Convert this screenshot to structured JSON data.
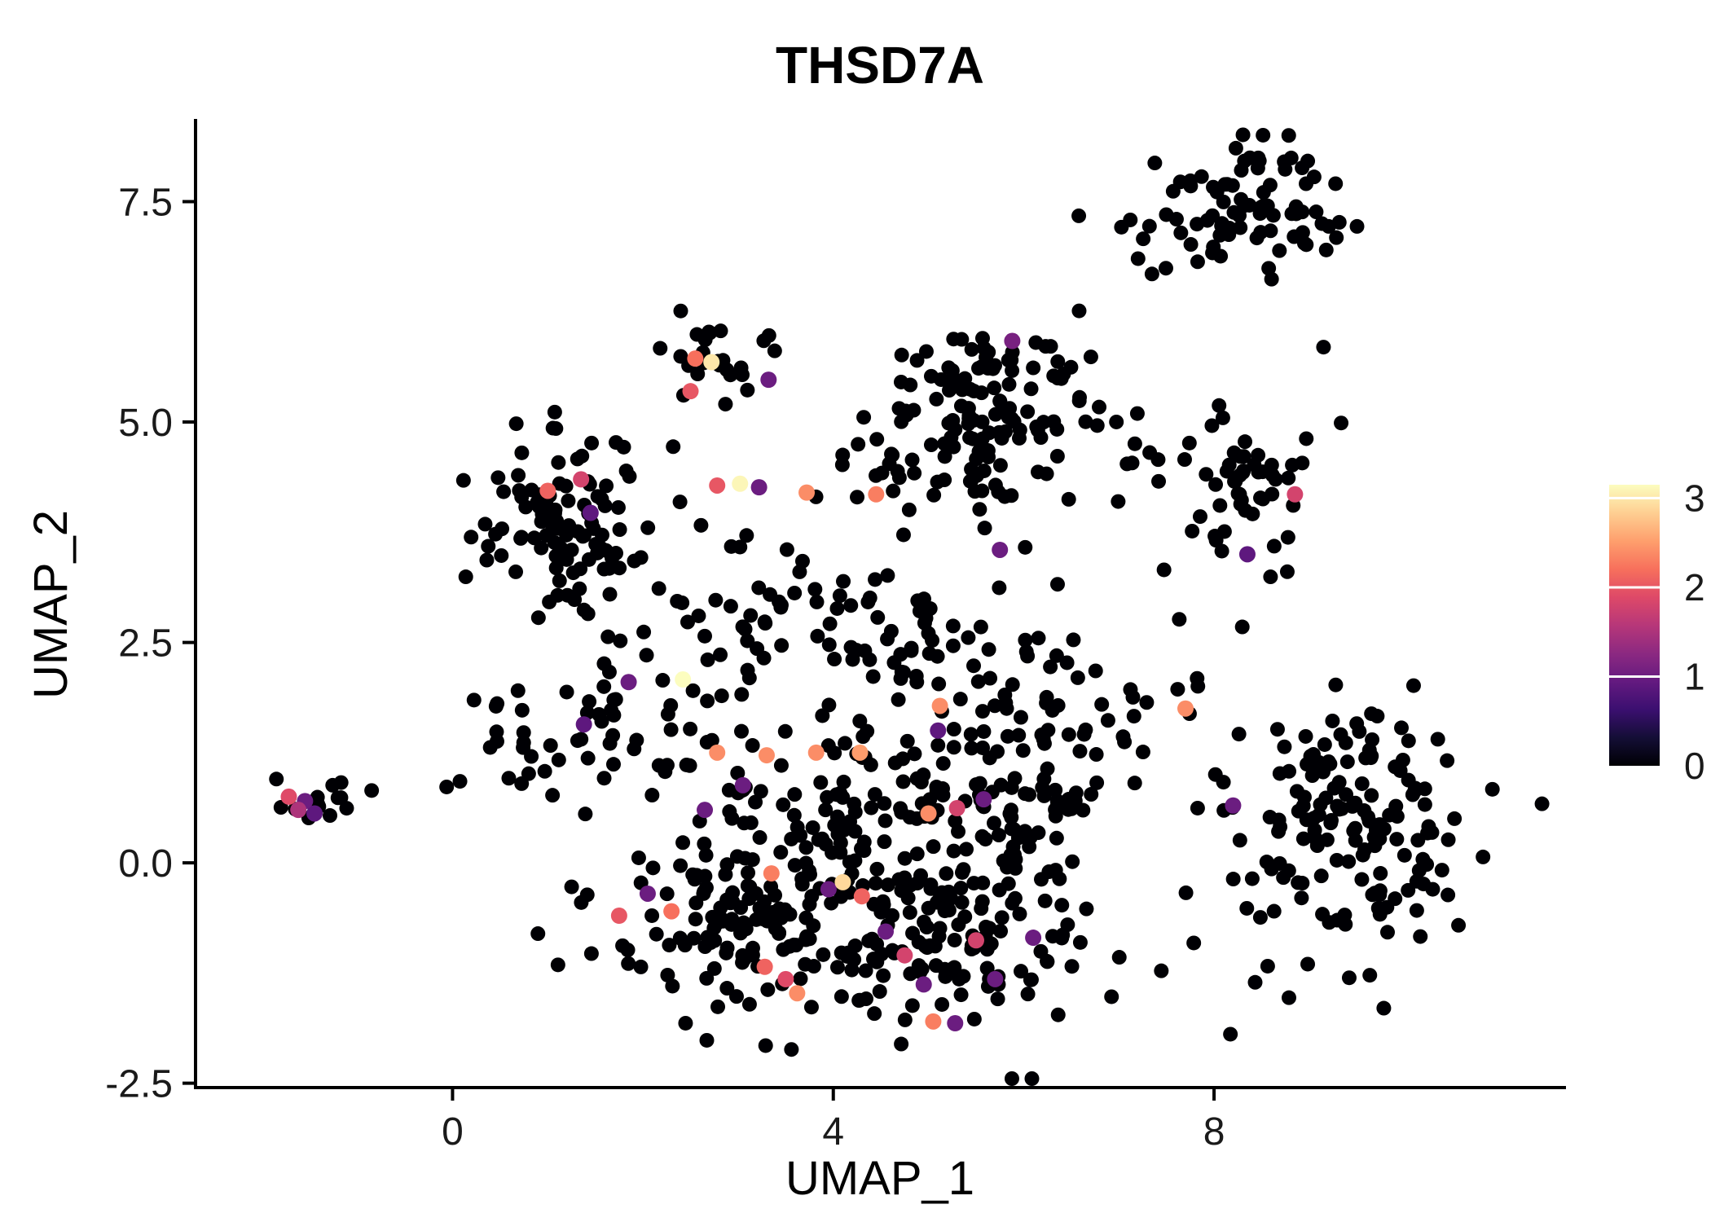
{
  "page": {
    "background": "#FFFFFF"
  },
  "chart_data": {
    "type": "scatter",
    "title": "THSD7A",
    "xlabel": "UMAP_1",
    "ylabel": "UMAP_2",
    "xlim": [
      -2.7,
      11.68
    ],
    "ylim": [
      -2.55,
      8.42
    ],
    "grid": false,
    "xticks": [
      {
        "v": 0,
        "label": "0"
      },
      {
        "v": 4,
        "label": "4"
      },
      {
        "v": 8,
        "label": "8"
      }
    ],
    "yticks": [
      {
        "v": -2.5,
        "label": "-2.5"
      },
      {
        "v": 0,
        "label": "0.0"
      },
      {
        "v": 2.5,
        "label": "2.5"
      },
      {
        "v": 5,
        "label": "5.0"
      },
      {
        "v": 7.5,
        "label": "7.5"
      }
    ],
    "legend": {
      "type": "colorbar",
      "position": "right",
      "min": 0,
      "max": 3.15,
      "ticks": [
        {
          "v": 0,
          "label": "0"
        },
        {
          "v": 1,
          "label": "1"
        },
        {
          "v": 2,
          "label": "2"
        },
        {
          "v": 3,
          "label": "3"
        }
      ]
    },
    "colormap": {
      "name": "magma",
      "stops": [
        [
          0.0,
          "#000004"
        ],
        [
          0.1,
          "#140E36"
        ],
        [
          0.2,
          "#3B0F70"
        ],
        [
          0.3,
          "#641A80"
        ],
        [
          0.4,
          "#8C2981"
        ],
        [
          0.5,
          "#B73779"
        ],
        [
          0.6,
          "#DE4968"
        ],
        [
          0.7,
          "#F7705C"
        ],
        [
          0.8,
          "#FE9F6D"
        ],
        [
          0.9,
          "#FECF92"
        ],
        [
          1.0,
          "#FCFDBF"
        ]
      ]
    },
    "point_color_zero": "#000004",
    "point_radius": 9,
    "random_seed": 12,
    "clusters": [
      {
        "name": "top-right",
        "cx": 8.35,
        "cy": 7.45,
        "sx": 0.5,
        "sy": 0.34,
        "n": 85
      },
      {
        "name": "top-right-fringe",
        "cx": 7.15,
        "cy": 7.0,
        "sx": 0.25,
        "sy": 0.3,
        "n": 5
      },
      {
        "name": "top-middle-small",
        "cx": 2.75,
        "cy": 5.75,
        "sx": 0.27,
        "sy": 0.22,
        "n": 26
      },
      {
        "name": "upper-mid",
        "cx": 5.55,
        "cy": 4.95,
        "sx": 0.5,
        "sy": 0.5,
        "n": 115
      },
      {
        "name": "upper-mid-top",
        "cx": 5.95,
        "cy": 5.7,
        "sx": 0.3,
        "sy": 0.2,
        "n": 18
      },
      {
        "name": "right-mid",
        "cx": 8.3,
        "cy": 4.3,
        "sx": 0.42,
        "sy": 0.4,
        "n": 55
      },
      {
        "name": "left",
        "cx": 1.15,
        "cy": 3.75,
        "sx": 0.42,
        "sy": 0.5,
        "n": 110
      },
      {
        "name": "far-left",
        "cx": -1.5,
        "cy": 0.72,
        "sx": 0.22,
        "sy": 0.11,
        "n": 14
      },
      {
        "name": "central-band",
        "cx": 1.8,
        "cy": 1.6,
        "sx": 0.7,
        "sy": 0.45,
        "n": 50
      },
      {
        "name": "left-notch",
        "cx": 0.55,
        "cy": 1.15,
        "sx": 0.2,
        "sy": 0.18,
        "n": 10
      },
      {
        "name": "mass-1",
        "cx": 3.1,
        "cy": -0.5,
        "sx": 0.72,
        "sy": 0.6,
        "n": 115
      },
      {
        "name": "mass-2",
        "cx": 4.6,
        "cy": -0.6,
        "sx": 0.75,
        "sy": 0.62,
        "n": 125
      },
      {
        "name": "mass-3",
        "cx": 5.8,
        "cy": -0.4,
        "sx": 0.55,
        "sy": 0.68,
        "n": 85
      },
      {
        "name": "mass-4",
        "cx": 4.6,
        "cy": 0.9,
        "sx": 0.95,
        "sy": 0.5,
        "n": 105
      },
      {
        "name": "mass-5",
        "cx": 6.3,
        "cy": 1.6,
        "sx": 0.55,
        "sy": 0.55,
        "n": 55
      },
      {
        "name": "bridge-top",
        "cx": 3.3,
        "cy": 2.9,
        "sx": 0.75,
        "sy": 0.4,
        "n": 40
      },
      {
        "name": "bridge-mid",
        "cx": 5.0,
        "cy": 2.6,
        "sx": 0.65,
        "sy": 0.45,
        "n": 45
      },
      {
        "name": "bottom-right",
        "cx": 9.35,
        "cy": 0.45,
        "sx": 0.62,
        "sy": 0.75,
        "n": 165
      },
      {
        "name": "gap-right",
        "cx": 7.5,
        "cy": 2.1,
        "sx": 0.3,
        "sy": 0.4,
        "n": 10
      },
      {
        "name": "mid-row",
        "cx": 4.3,
        "cy": 4.4,
        "sx": 0.35,
        "sy": 0.18,
        "n": 12
      },
      {
        "name": "upper-bridge",
        "cx": 6.95,
        "cy": 4.9,
        "sx": 0.3,
        "sy": 0.3,
        "n": 8
      }
    ],
    "extra_black_points": [
      [
        9.15,
        5.85
      ],
      [
        -0.85,
        0.82
      ]
    ],
    "colored_points": [
      [
        2.55,
        5.72,
        2.2
      ],
      [
        2.72,
        5.68,
        3.0
      ],
      [
        2.5,
        5.35,
        2.0
      ],
      [
        3.32,
        5.48,
        1.0
      ],
      [
        5.88,
        5.92,
        1.1
      ],
      [
        8.85,
        4.18,
        1.8
      ],
      [
        8.35,
        3.5,
        0.9
      ],
      [
        5.75,
        3.55,
        1.0
      ],
      [
        1.0,
        4.22,
        2.1
      ],
      [
        1.45,
        3.97,
        0.9
      ],
      [
        1.35,
        4.35,
        1.8
      ],
      [
        2.78,
        4.28,
        2.0
      ],
      [
        3.02,
        4.3,
        3.1
      ],
      [
        3.22,
        4.26,
        1.0
      ],
      [
        3.72,
        4.2,
        2.4
      ],
      [
        4.45,
        4.18,
        2.3
      ],
      [
        2.42,
        2.08,
        3.15
      ],
      [
        1.85,
        2.05,
        1.0
      ],
      [
        1.38,
        1.57,
        0.9
      ],
      [
        2.78,
        1.25,
        2.4
      ],
      [
        -1.72,
        0.75,
        1.9
      ],
      [
        -1.55,
        0.7,
        1.0
      ],
      [
        -1.45,
        0.56,
        0.9
      ],
      [
        -1.62,
        0.6,
        1.5
      ],
      [
        3.3,
        1.22,
        2.4
      ],
      [
        3.82,
        1.25,
        2.4
      ],
      [
        4.28,
        1.25,
        2.5
      ],
      [
        5.12,
        1.78,
        2.4
      ],
      [
        7.7,
        1.75,
        2.4
      ],
      [
        5.1,
        1.5,
        0.9
      ],
      [
        5.0,
        0.56,
        2.4
      ],
      [
        5.3,
        0.62,
        1.8
      ],
      [
        5.58,
        0.72,
        1.0
      ],
      [
        2.65,
        0.6,
        1.0
      ],
      [
        3.05,
        0.88,
        1.0
      ],
      [
        3.35,
        -0.12,
        2.3
      ],
      [
        4.1,
        -0.22,
        2.9
      ],
      [
        3.95,
        -0.3,
        1.0
      ],
      [
        4.3,
        -0.38,
        2.1
      ],
      [
        2.3,
        -0.55,
        2.2
      ],
      [
        1.75,
        -0.6,
        2.0
      ],
      [
        2.05,
        -0.35,
        1.0
      ],
      [
        4.55,
        -0.78,
        1.0
      ],
      [
        4.75,
        -1.05,
        1.8
      ],
      [
        4.95,
        -1.38,
        1.0
      ],
      [
        3.28,
        -1.18,
        2.1
      ],
      [
        3.5,
        -1.32,
        1.9
      ],
      [
        3.62,
        -1.48,
        2.4
      ],
      [
        5.05,
        -1.8,
        2.3
      ],
      [
        5.28,
        -1.82,
        1.0
      ],
      [
        5.7,
        -1.32,
        1.0
      ],
      [
        5.5,
        -0.88,
        1.8
      ],
      [
        6.1,
        -0.85,
        1.0
      ],
      [
        8.2,
        0.65,
        1.0
      ]
    ]
  }
}
